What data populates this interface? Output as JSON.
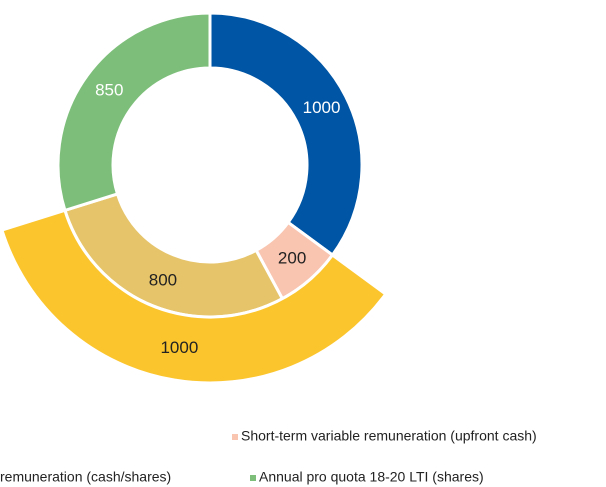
{
  "chart_data": {
    "type": "donut",
    "rings": [
      {
        "values": [
          1000,
          200,
          800,
          850
        ],
        "colors": [
          "#0055a4",
          "#f9c4b0",
          "#e6c46a",
          "#7dbf7a"
        ],
        "label_colors": [
          "#ffffff",
          "#222222",
          "#222222",
          "#ffffff"
        ],
        "names": [
          null,
          "Short-term variable remuneration (upfront cash)",
          "remuneration (cash/shares)",
          "Annual pro quota 18-20 LTI (shares)"
        ]
      },
      {
        "values": [
          1000
        ],
        "colors": [
          "#fbc52e"
        ],
        "label_colors": [
          "#222222"
        ],
        "spans_segments": [
          1,
          2
        ]
      }
    ]
  }
}
